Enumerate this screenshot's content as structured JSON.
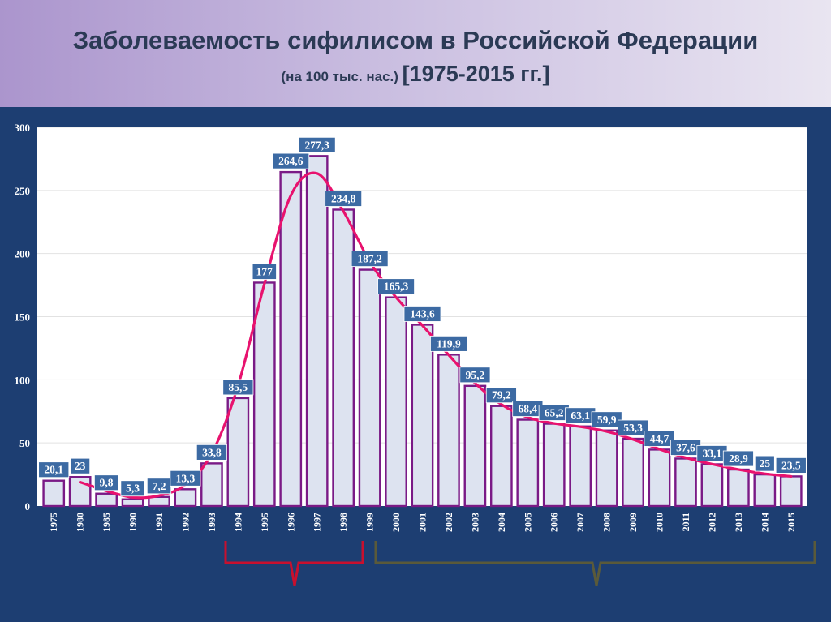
{
  "title": {
    "line1": "Заболеваемость сифилисом в Российской Федерации",
    "line2_small": "(на 100 тыс. нас.) ",
    "line2_big": "[1975-2015 гг.]"
  },
  "chart_data": {
    "type": "bar",
    "categories": [
      "1975",
      "1980",
      "1985",
      "1990",
      "1991",
      "1992",
      "1993",
      "1994",
      "1995",
      "1996",
      "1997",
      "1998",
      "1999",
      "2000",
      "2001",
      "2002",
      "2003",
      "2004",
      "2005",
      "2006",
      "2007",
      "2008",
      "2009",
      "2010",
      "2011",
      "2012",
      "2013",
      "2014",
      "2015"
    ],
    "values": [
      20.1,
      23,
      9.8,
      5.3,
      7.2,
      13.3,
      33.8,
      85.5,
      177,
      264.6,
      277.3,
      234.8,
      187.2,
      165.3,
      143.6,
      119.9,
      95.2,
      79.2,
      68.4,
      65.2,
      63.1,
      59.9,
      53.3,
      44.7,
      37.6,
      33.1,
      28.9,
      25,
      23.5
    ],
    "labels": [
      "20,1",
      "23",
      "9,8",
      "5,3",
      "7,2",
      "13,3",
      "33,8",
      "85,5",
      "177",
      "264,6",
      "277,3",
      "234,8",
      "187,2",
      "165,3",
      "143,6",
      "119,9",
      "95,2",
      "79,2",
      "68,4",
      "65,2",
      "63,1",
      "59,9",
      "53,3",
      "44,7",
      "37,6",
      "33,1",
      "28,9",
      "25",
      "23,5"
    ],
    "yticks": [
      0,
      50,
      100,
      150,
      200,
      250,
      300
    ],
    "ylim": [
      0,
      300
    ],
    "colors": {
      "bar_fill": "#dde3f0",
      "bar_stroke": "#7a1a86",
      "trend_line": "#e8126e",
      "label_bg": "#3c6aa3",
      "label_text": "#ffffff",
      "bracket_red": "#c8102e",
      "bracket_olive": "#5a5a3a"
    }
  }
}
